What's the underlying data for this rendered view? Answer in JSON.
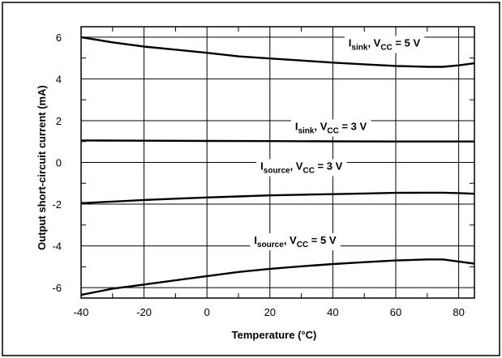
{
  "chart_data": {
    "type": "line",
    "xlabel": "Temperature (°C)",
    "ylabel": "Output short-circuit current (mA)",
    "xlim": [
      -40,
      85
    ],
    "ylim": [
      -6.5,
      6.5
    ],
    "grid": true,
    "xticks": [
      -40,
      -20,
      0,
      20,
      40,
      60,
      80
    ],
    "yticks": [
      6,
      4,
      2,
      0,
      -2,
      -4,
      -6
    ],
    "series": [
      {
        "name": "Isink, VCC = 5 V",
        "label_parts": [
          "I",
          "sink",
          ", V",
          "CC",
          " = 5 V"
        ],
        "x": [
          -40,
          -30,
          -20,
          -10,
          0,
          10,
          20,
          30,
          40,
          50,
          60,
          70,
          75,
          80,
          85
        ],
        "y": [
          6.0,
          5.75,
          5.55,
          5.4,
          5.25,
          5.08,
          4.98,
          4.88,
          4.78,
          4.7,
          4.62,
          4.58,
          4.58,
          4.65,
          4.75
        ]
      },
      {
        "name": "Isink, VCC = 3 V",
        "label_parts": [
          "I",
          "sink",
          ", V",
          "CC",
          " = 3 V"
        ],
        "x": [
          -40,
          -20,
          0,
          20,
          40,
          60,
          80,
          85
        ],
        "y": [
          1.05,
          1.04,
          1.03,
          1.02,
          1.01,
          1.0,
          1.0,
          1.0
        ]
      },
      {
        "name": "Isource, VCC = 3 V",
        "label_parts": [
          "I",
          "source",
          ", V",
          "CC",
          " = 3 V"
        ],
        "x": [
          -40,
          -30,
          -20,
          -10,
          0,
          10,
          20,
          30,
          40,
          50,
          60,
          70,
          75,
          80,
          85
        ],
        "y": [
          -1.95,
          -1.88,
          -1.8,
          -1.74,
          -1.68,
          -1.63,
          -1.58,
          -1.55,
          -1.52,
          -1.49,
          -1.46,
          -1.45,
          -1.45,
          -1.47,
          -1.5
        ]
      },
      {
        "name": "Isource, VCC = 5 V",
        "label_parts": [
          "I",
          "source",
          ", V",
          "CC",
          " = 5 V"
        ],
        "x": [
          -40,
          -30,
          -20,
          -10,
          0,
          10,
          20,
          30,
          40,
          50,
          60,
          70,
          75,
          80,
          85
        ],
        "y": [
          -6.35,
          -6.05,
          -5.85,
          -5.65,
          -5.45,
          -5.25,
          -5.1,
          -4.98,
          -4.87,
          -4.78,
          -4.7,
          -4.65,
          -4.65,
          -4.75,
          -4.85
        ]
      }
    ]
  }
}
